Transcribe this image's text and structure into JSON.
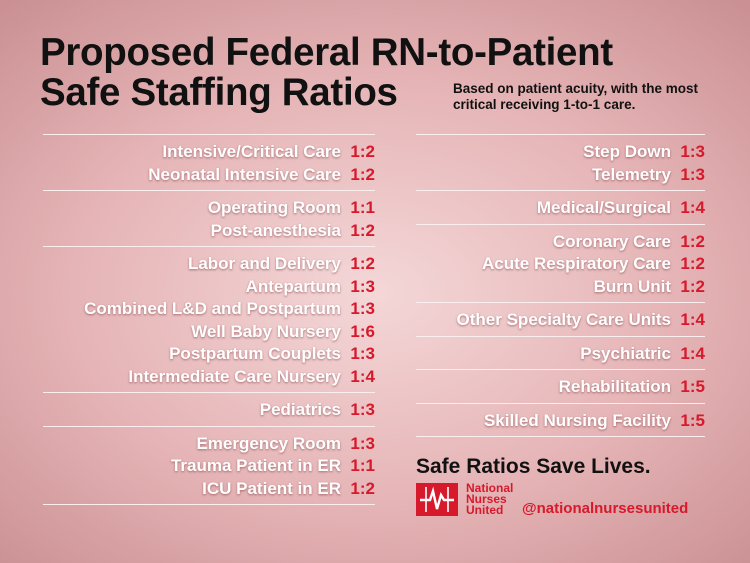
{
  "title": {
    "line1": "Proposed Federal RN-to-Patient",
    "line2": "Safe Staffing Ratios"
  },
  "subtitle": "Based on patient acuity, with the most critical receiving 1-to-1 care.",
  "left_groups": [
    [
      {
        "label": "Intensive/Critical Care",
        "ratio": "1:2"
      },
      {
        "label": "Neonatal Intensive Care",
        "ratio": "1:2"
      }
    ],
    [
      {
        "label": "Operating Room",
        "ratio": "1:1"
      },
      {
        "label": "Post-anesthesia",
        "ratio": "1:2"
      }
    ],
    [
      {
        "label": "Labor and Delivery",
        "ratio": "1:2"
      },
      {
        "label": "Antepartum",
        "ratio": "1:3"
      },
      {
        "label": "Combined L&D and Postpartum",
        "ratio": "1:3"
      },
      {
        "label": "Well Baby Nursery",
        "ratio": "1:6"
      },
      {
        "label": "Postpartum Couplets",
        "ratio": "1:3"
      },
      {
        "label": "Intermediate Care Nursery",
        "ratio": "1:4"
      }
    ],
    [
      {
        "label": "Pediatrics",
        "ratio": "1:3"
      }
    ],
    [
      {
        "label": "Emergency Room",
        "ratio": "1:3"
      },
      {
        "label": "Trauma Patient in ER",
        "ratio": "1:1"
      },
      {
        "label": "ICU Patient in ER",
        "ratio": "1:2"
      }
    ]
  ],
  "right_groups": [
    [
      {
        "label": "Step Down",
        "ratio": "1:3"
      },
      {
        "label": "Telemetry",
        "ratio": "1:3"
      }
    ],
    [
      {
        "label": "Medical/Surgical",
        "ratio": "1:4"
      }
    ],
    [
      {
        "label": "Coronary Care",
        "ratio": "1:2"
      },
      {
        "label": "Acute Respiratory Care",
        "ratio": "1:2"
      },
      {
        "label": "Burn Unit",
        "ratio": "1:2"
      }
    ],
    [
      {
        "label": "Other Specialty Care Units",
        "ratio": "1:4"
      }
    ],
    [
      {
        "label": "Psychiatric",
        "ratio": "1:4"
      }
    ],
    [
      {
        "label": "Rehabilitation",
        "ratio": "1:5"
      }
    ],
    [
      {
        "label": "Skilled Nursing Facility",
        "ratio": "1:5"
      }
    ]
  ],
  "tagline": "Safe Ratios Save Lives.",
  "org": {
    "line1": "National",
    "line2": "Nurses",
    "line3": "United"
  },
  "handle": "@nationalnursesunited",
  "colors": {
    "accent": "#d7192c",
    "label_text": "#ffffff",
    "heading_text": "#111111"
  },
  "logo_icon": "heartbeat-pulse-icon"
}
